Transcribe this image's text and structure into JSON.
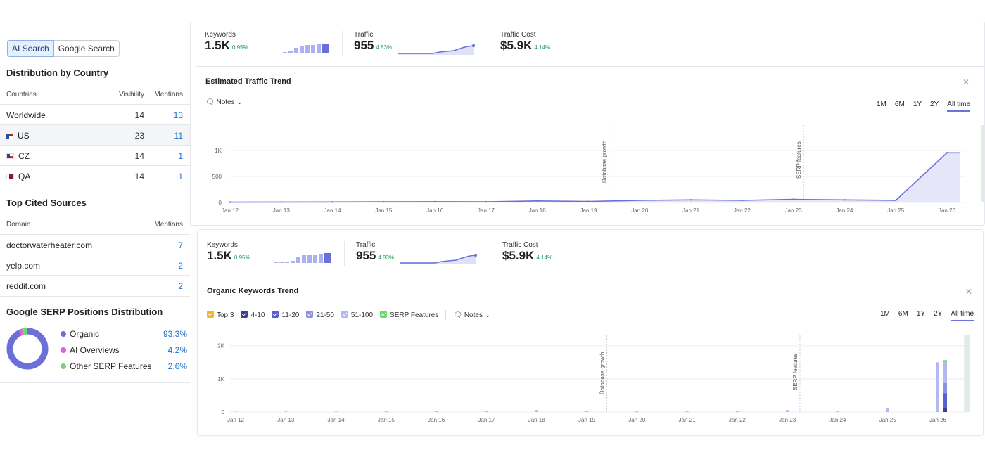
{
  "left": {
    "tabs": [
      "AI Search",
      "Google Search"
    ],
    "distribution": {
      "title": "Distribution by Country",
      "headers": [
        "Countries",
        "Visibility",
        "Mentions"
      ],
      "rows": [
        {
          "country": "Worldwide",
          "visibility": "14",
          "mentions": "13"
        },
        {
          "country": "US",
          "visibility": "23",
          "mentions": "11"
        },
        {
          "country": "CZ",
          "visibility": "14",
          "mentions": "1"
        },
        {
          "country": "QA",
          "visibility": "14",
          "mentions": "1"
        }
      ]
    },
    "sources": {
      "title": "Top Cited Sources",
      "headers": [
        "Domain",
        "Mentions"
      ],
      "rows": [
        {
          "domain": "doctorwaterheater.com",
          "mentions": "7"
        },
        {
          "domain": "yelp.com",
          "mentions": "2"
        },
        {
          "domain": "reddit.com",
          "mentions": "2"
        }
      ]
    },
    "serp": {
      "title": "Google SERP Positions Distribution",
      "items": [
        {
          "label": "Organic",
          "value": "93.3%",
          "color": "#6b6fd9"
        },
        {
          "label": "AI Overviews",
          "value": "4.2%",
          "color": "#e25fe0"
        },
        {
          "label": "Other SERP Features",
          "value": "2.6%",
          "color": "#6fd96b"
        }
      ]
    }
  },
  "metrics": {
    "keywords_label": "Keywords",
    "keywords_value": "1.5K",
    "keywords_pct": "0.95%",
    "traffic_label": "Traffic",
    "traffic_value": "955",
    "traffic_pct": "4.83%",
    "cost_label": "Traffic Cost",
    "cost_value": "$5.9K",
    "cost_pct": "4.14%"
  },
  "traffic_card": {
    "title": "Estimated Traffic Trend",
    "notes": "Notes",
    "periods": [
      "1M",
      "6M",
      "1Y",
      "2Y",
      "All time"
    ],
    "annotations": [
      "Database growth",
      "SERP features"
    ]
  },
  "keywords_card": {
    "title": "Organic Keywords Trend",
    "notes": "Notes",
    "periods": [
      "1M",
      "6M",
      "1Y",
      "2Y",
      "All time"
    ],
    "legend": [
      {
        "label": "Top 3",
        "color": "#f2b52b"
      },
      {
        "label": "4-10",
        "color": "#3a3f9e"
      },
      {
        "label": "11-20",
        "color": "#5a5fd0"
      },
      {
        "label": "21-50",
        "color": "#8d92e6"
      },
      {
        "label": "51-100",
        "color": "#b4b8f0"
      },
      {
        "label": "SERP Features",
        "color": "#6fd96b"
      }
    ],
    "annotations": [
      "Database growth",
      "SERP features"
    ]
  },
  "chart_data": [
    {
      "type": "area",
      "x": [
        "Jan 12",
        "Jan 13",
        "Jan 14",
        "Jan 15",
        "Jan 16",
        "Jan 17",
        "Jan 18",
        "Jan 19",
        "Jan 20",
        "Jan 21",
        "Jan 22",
        "Jan 23",
        "Jan 24",
        "Jan 25",
        "Jan 26"
      ],
      "yticks": [
        "0",
        "500",
        "1K"
      ],
      "ylim": [
        0,
        1350
      ],
      "series": [
        {
          "values": [
            5,
            8,
            10,
            12,
            15,
            12,
            30,
            20,
            40,
            50,
            40,
            60,
            50,
            40,
            955
          ]
        }
      ]
    },
    {
      "type": "bar",
      "x": [
        "Jan 12",
        "Jan 13",
        "Jan 14",
        "Jan 15",
        "Jan 16",
        "Jan 17",
        "Jan 18",
        "Jan 19",
        "Jan 20",
        "Jan 21",
        "Jan 22",
        "Jan 23",
        "Jan 24",
        "Jan 25",
        "Jan 26"
      ],
      "yticks": [
        "0",
        "1K",
        "2K"
      ],
      "ylim": [
        0,
        2100
      ],
      "series": [
        {
          "values": [
            10,
            15,
            15,
            20,
            25,
            30,
            60,
            25,
            20,
            25,
            30,
            60,
            40,
            120,
            1500
          ]
        }
      ]
    }
  ]
}
